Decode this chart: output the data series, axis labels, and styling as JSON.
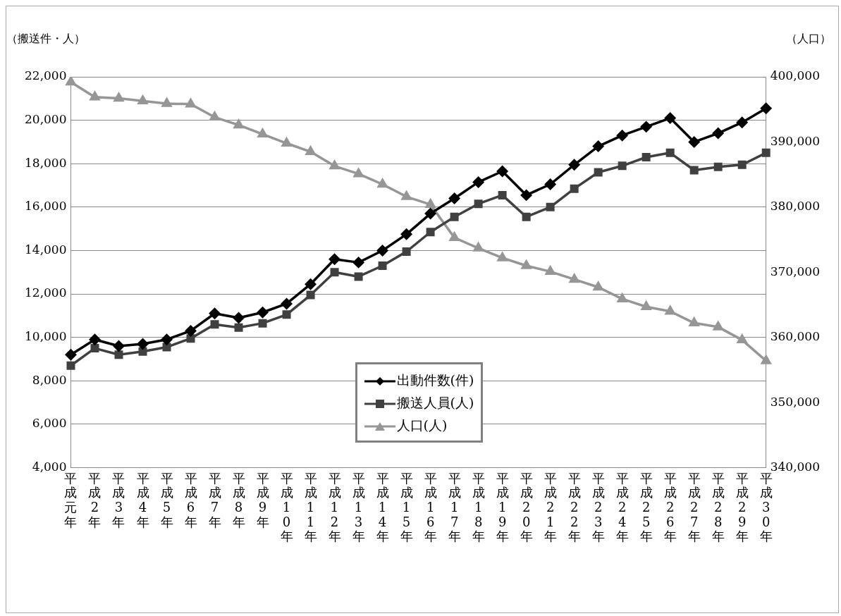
{
  "chart_data": {
    "type": "line",
    "ylabel": "（搬送件・人）",
    "y2label": "（人口）",
    "categories": [
      "平成元年",
      "平成2年",
      "平成3年",
      "平成4年",
      "平成5年",
      "平成6年",
      "平成7年",
      "平成8年",
      "平成9年",
      "平成10年",
      "平成11年",
      "平成12年",
      "平成13年",
      "平成14年",
      "平成15年",
      "平成16年",
      "平成17年",
      "平成18年",
      "平成19年",
      "平成20年",
      "平成21年",
      "平成22年",
      "平成23年",
      "平成24年",
      "平成25年",
      "平成26年",
      "平成27年",
      "平成28年",
      "平成29年",
      "平成30年"
    ],
    "series": [
      {
        "name": "出動件数(件)",
        "color": "#000000",
        "marker": "diamond",
        "values": [
          9200,
          9900,
          9600,
          9700,
          9900,
          10300,
          11100,
          10900,
          11150,
          11550,
          12450,
          13600,
          13450,
          14000,
          14750,
          15700,
          16400,
          17150,
          17650,
          16550,
          17050,
          17950,
          18800,
          19300,
          19700,
          20100,
          19000,
          19400,
          19900,
          20550
        ]
      },
      {
        "name": "搬送人員(人)",
        "color": "#404040",
        "marker": "square",
        "values": [
          8700,
          9500,
          9200,
          9350,
          9550,
          9950,
          10600,
          10450,
          10650,
          11050,
          11950,
          13000,
          12800,
          13300,
          13950,
          14850,
          15550,
          16150,
          16550,
          15550,
          16000,
          16850,
          17600,
          17900,
          18300,
          18500,
          17700,
          17850,
          17950,
          18500
        ]
      },
      {
        "name": "人口(人)",
        "color": "#969696",
        "marker": "triangle",
        "axis": "y2",
        "values": [
          399200,
          396900,
          396700,
          396300,
          395900,
          395800,
          393800,
          392600,
          391200,
          389800,
          388500,
          386300,
          385100,
          383500,
          381600,
          380400,
          375300,
          373700,
          372200,
          371000,
          370100,
          368900,
          367700,
          365900,
          364700,
          364000,
          362200,
          361600,
          359600,
          356400
        ]
      }
    ],
    "ylim": [
      4000,
      22000
    ],
    "yticks": [
      {
        "value": 4000,
        "label": "4,000"
      },
      {
        "value": 6000,
        "label": "6,000"
      },
      {
        "value": 8000,
        "label": "8,000"
      },
      {
        "value": 10000,
        "label": "10,000"
      },
      {
        "value": 12000,
        "label": "12,000"
      },
      {
        "value": 14000,
        "label": "14,000"
      },
      {
        "value": 16000,
        "label": "16,000"
      },
      {
        "value": 18000,
        "label": "18,000"
      },
      {
        "value": 20000,
        "label": "20,000"
      },
      {
        "value": 22000,
        "label": "22,000"
      }
    ],
    "y2lim": [
      340000,
      400000
    ],
    "y2ticks": [
      {
        "value": 340000,
        "label": "340,000"
      },
      {
        "value": 350000,
        "label": "350,000"
      },
      {
        "value": 360000,
        "label": "360,000"
      },
      {
        "value": 370000,
        "label": "370,000"
      },
      {
        "value": 380000,
        "label": "380,000"
      },
      {
        "value": 390000,
        "label": "390,000"
      },
      {
        "value": 400000,
        "label": "400,000"
      }
    ],
    "grid": "y",
    "legend": "bottom",
    "line_style": "solid"
  }
}
